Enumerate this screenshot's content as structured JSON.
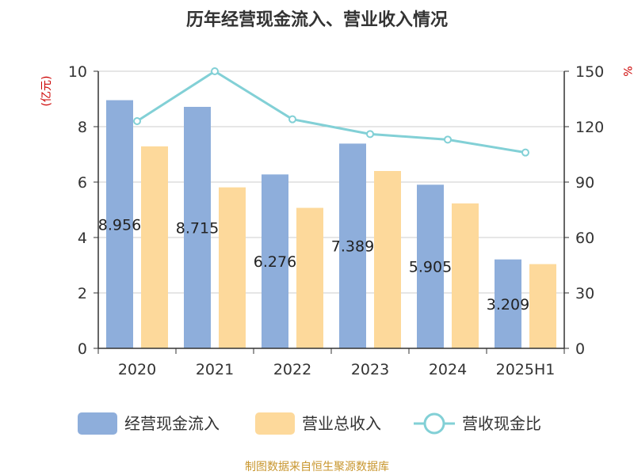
{
  "chart_data": {
    "type": "bar",
    "title": "历年经营现金流入、营业收入情况",
    "categories": [
      "2020",
      "2021",
      "2022",
      "2023",
      "2024",
      "2025H1"
    ],
    "left_axis": {
      "unit_label": "(亿元)",
      "ylim": [
        0,
        10
      ],
      "ticks": [
        "0",
        "2",
        "4",
        "6",
        "8",
        "10"
      ]
    },
    "right_axis": {
      "unit_label": "%",
      "ylim": [
        0,
        150
      ],
      "ticks": [
        "0",
        "30",
        "60",
        "90",
        "120",
        "150"
      ]
    },
    "series": [
      {
        "name": "经营现金流入",
        "type": "bar",
        "axis": "left",
        "color": "#8eaedb",
        "values": [
          8.956,
          8.715,
          6.276,
          7.389,
          5.905,
          3.209
        ],
        "labels": [
          "8.956",
          "8.715",
          "6.276",
          "7.389",
          "5.905",
          "3.209"
        ]
      },
      {
        "name": "营业总收入",
        "type": "bar",
        "axis": "left",
        "color": "#fdd99b",
        "values": [
          7.29,
          5.81,
          5.07,
          6.4,
          5.23,
          3.04
        ]
      },
      {
        "name": "营收现金比",
        "type": "line",
        "axis": "right",
        "color": "#82d0d6",
        "values": [
          123,
          150,
          124,
          116,
          113,
          106
        ]
      }
    ],
    "grid": true,
    "legend_position": "bottom"
  },
  "footer": {
    "source": "制图数据来自恒生聚源数据库"
  }
}
